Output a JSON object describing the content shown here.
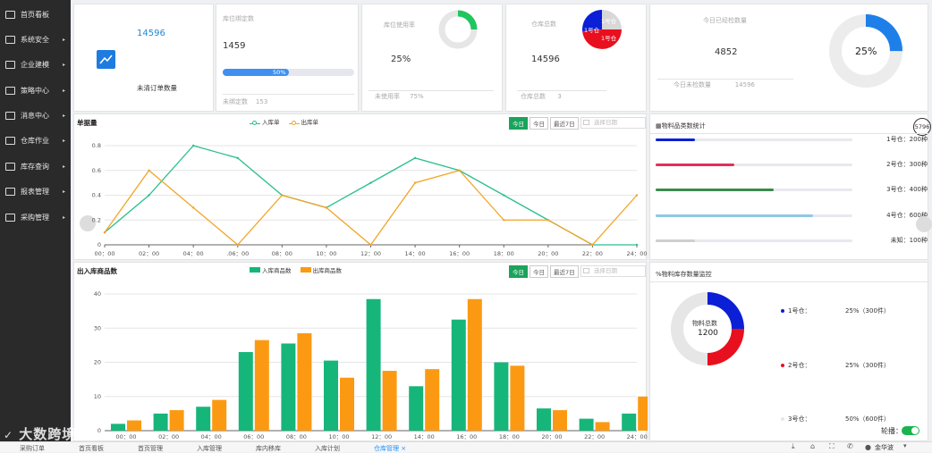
{
  "sidebar": {
    "items": [
      {
        "label": "首页看板",
        "arrow": ""
      },
      {
        "label": "系统安全",
        "arrow": "▸"
      },
      {
        "label": "企业建模",
        "arrow": "▸"
      },
      {
        "label": "策略中心",
        "arrow": "▸"
      },
      {
        "label": "消息中心",
        "arrow": "▸"
      },
      {
        "label": "仓库作业",
        "arrow": "▸"
      },
      {
        "label": "库存查询",
        "arrow": "▸"
      },
      {
        "label": "报表管理",
        "arrow": "▸"
      },
      {
        "label": "采购管理",
        "arrow": "▸"
      }
    ]
  },
  "kpi": {
    "orders": {
      "value": "14596",
      "label": "未清订单数量"
    },
    "bins": {
      "title": "库位绑定数",
      "value": "1459",
      "progress_label": "50%",
      "progress": 0.5,
      "foot_label": "未绑定数",
      "foot_value": "153"
    },
    "usage": {
      "title": "库位使用率",
      "value": "25%",
      "foot_label": "未使用率",
      "foot_value": "75%",
      "ring_fraction": 0.25
    },
    "warehouses": {
      "title": "仓库总数",
      "value": "14596",
      "foot_label": "仓库总数",
      "foot_value": "3",
      "pie_labels": [
        "1号仓",
        "1号仓",
        "1号仓"
      ]
    },
    "checked": {
      "title": "今日已经检数量",
      "value": "4852",
      "foot_label": "今日未检数量",
      "foot_value": "14596",
      "ring_label": "25%",
      "ring_fraction": 0.25
    }
  },
  "line_panel": {
    "title": "单据量",
    "buttons": [
      "今日",
      "今日",
      "最近7日"
    ],
    "date_placeholder": "选择日期",
    "chart_data": {
      "type": "line",
      "x": [
        "00:00",
        "02:00",
        "04:00",
        "06:00",
        "08:00",
        "10:00",
        "12:00",
        "14:00",
        "16:00",
        "18:00",
        "20:00",
        "22:00",
        "24:00"
      ],
      "xtick_labels": [
        "00：00",
        "02：00",
        "04：00",
        ".06：00",
        "08：00",
        "10：00",
        "12：00",
        "14：00",
        "16：00",
        "18：00",
        "20：00",
        "22：00",
        "24：00"
      ],
      "series": [
        {
          "name": "入库单",
          "color": "#2bbf8e",
          "values": [
            0.1,
            0.4,
            0.8,
            0.7,
            0.4,
            0.3,
            0.5,
            0.7,
            0.6,
            0.4,
            0.2,
            0,
            0
          ]
        },
        {
          "name": "出库单",
          "color": "#f2a528",
          "values": [
            0.1,
            0.6,
            0.3,
            0,
            0.4,
            0.3,
            0,
            0.5,
            0.6,
            0.2,
            0.2,
            0,
            0.4
          ]
        }
      ],
      "ylim": [
        0,
        0.8
      ],
      "yticks": [
        "0",
        "0.2",
        "0.4",
        "0.6",
        "0.8"
      ],
      "grid": true,
      "legend": "top"
    }
  },
  "bar_panel": {
    "title": "出入库商品数",
    "buttons": [
      "今日",
      "今日",
      "最近7日"
    ],
    "date_placeholder": "选择日期",
    "chart_data": {
      "type": "bar",
      "categories": [
        "00:00",
        "02:00",
        "04:00",
        "06:00",
        "08:00",
        "10:00",
        "12:00",
        "14:00",
        "16:00",
        "18:00",
        "20:00",
        "22:00",
        "24:00"
      ],
      "xtick_labels": [
        "00：00",
        "02：00",
        "04：00",
        "06：00",
        "08：00",
        "10：00",
        "12：00",
        "14：00",
        "16：00",
        "18：00",
        "20：00",
        "22：00",
        "24：00"
      ],
      "series": [
        {
          "name": "入库商品数",
          "color": "#16b67a",
          "values": [
            2,
            5,
            7,
            23,
            25.5,
            20.5,
            38.5,
            13,
            32.5,
            20,
            6.5,
            3.5,
            5
          ]
        },
        {
          "name": "出库商品数",
          "color": "#fb9a12",
          "values": [
            3,
            6,
            9,
            26.5,
            28.5,
            15.5,
            17.5,
            18,
            38.5,
            19,
            6,
            2.5,
            10
          ]
        }
      ],
      "ylim": [
        0,
        40
      ],
      "yticks": [
        "0",
        "10",
        "20",
        "30",
        "40"
      ],
      "grid": true,
      "legend": "top"
    }
  },
  "type_panel": {
    "title": "▦物料品类数统计",
    "badge": "5796",
    "rows": [
      {
        "label": "1号仓：200种",
        "color": "#0a1fd6",
        "fraction": 0.2
      },
      {
        "label": "2号仓：300种",
        "color": "#e03058",
        "fraction": 0.4
      },
      {
        "label": "3号仓：400种",
        "color": "#3b8a4a",
        "fraction": 0.6
      },
      {
        "label": "4号仓：600种",
        "color": "#8ec8e6",
        "fraction": 0.8
      },
      {
        "label": "未知：100种",
        "color": "#cfcfcf",
        "fraction": 0.2
      }
    ]
  },
  "stock_panel": {
    "title": "%物料库存数量监控",
    "center_label": "物料总数",
    "center_value": "1200",
    "legend": [
      {
        "name": "1号仓：",
        "color": "#0a1fd6",
        "value": "25%（300件）",
        "fraction": 0.25
      },
      {
        "name": "2号仓：",
        "color": "#e8101e",
        "value": "25%（300件）",
        "fraction": 0.25
      },
      {
        "name": "3号仓：",
        "color": "#e6e6e6",
        "value": "50%（600件）",
        "fraction": 0.5
      }
    ],
    "toggle_label": "轮播："
  },
  "tabbar": {
    "tabs": [
      "采购订单",
      "首页看板",
      "首页管理",
      "入库管理",
      "库内移库",
      "入库计划",
      "仓库管理"
    ],
    "active_close": "×",
    "user": "金华波"
  },
  "watermark": "大数跨境"
}
